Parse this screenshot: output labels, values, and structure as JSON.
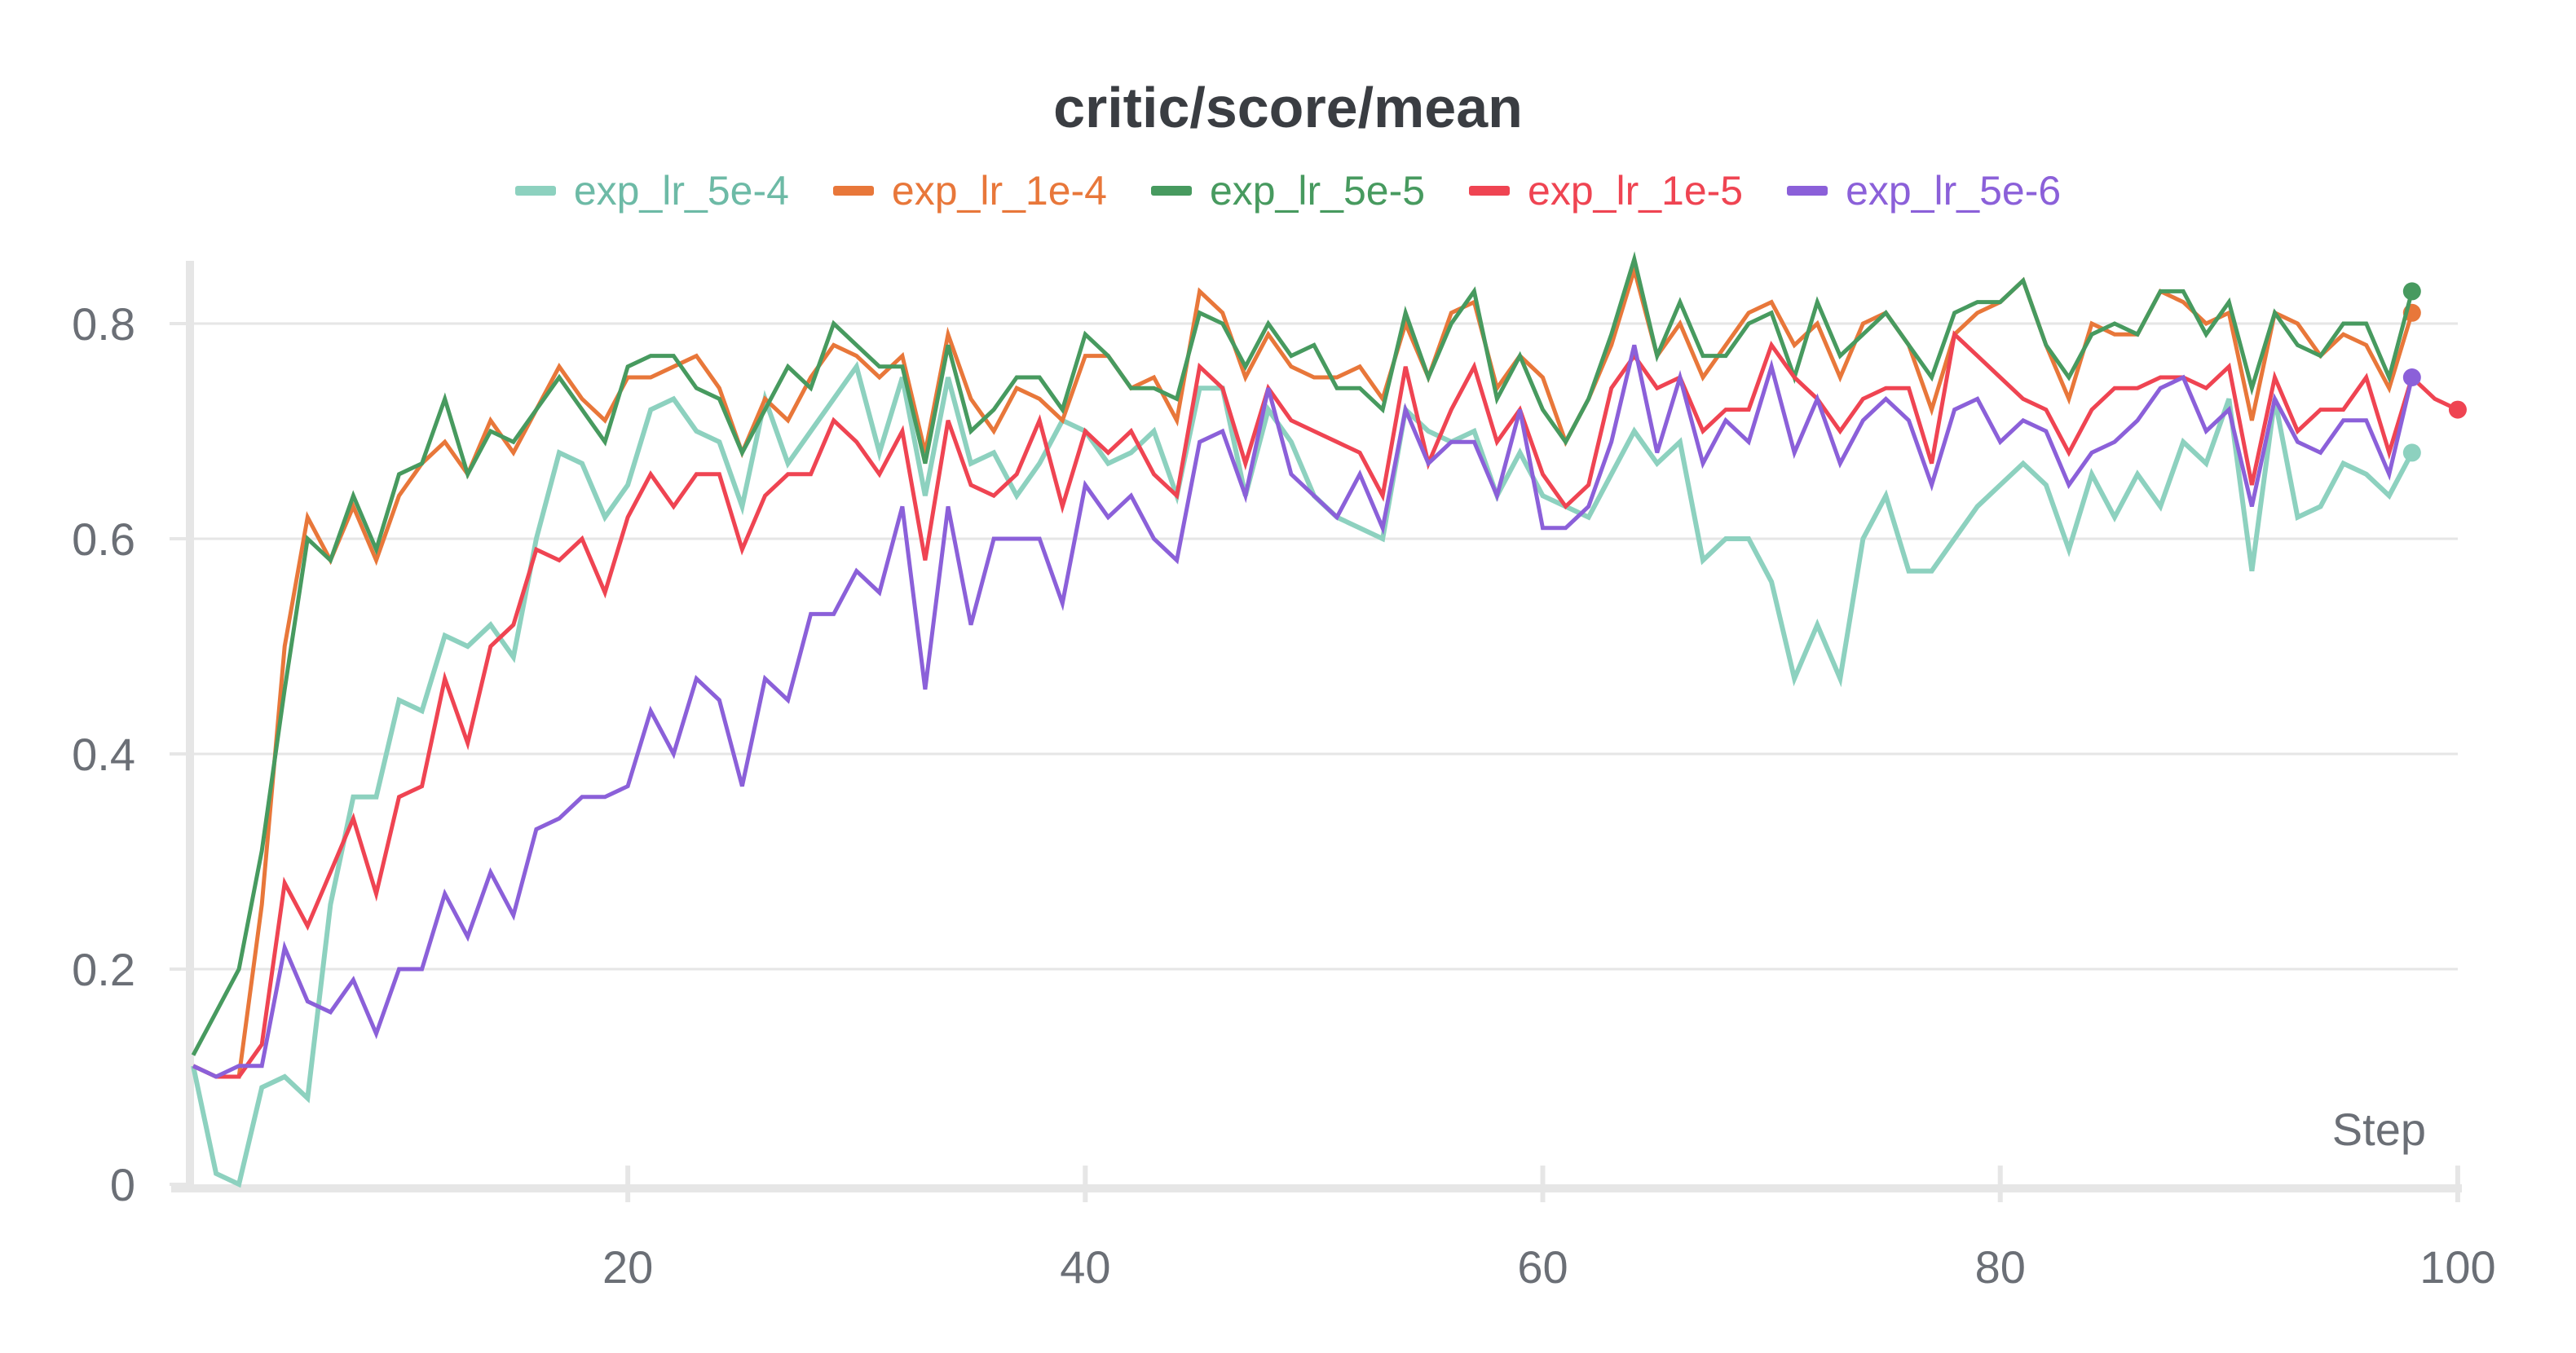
{
  "chart_data": {
    "type": "line",
    "title": "critic/score/mean",
    "xlabel": "Step",
    "ylabel": "",
    "xlim": [
      1,
      100
    ],
    "ylim": [
      0,
      0.86
    ],
    "xticks": [
      20,
      40,
      60,
      80,
      100
    ],
    "yticks": [
      0,
      0.2,
      0.4,
      0.6,
      0.8
    ],
    "ytick_labels": [
      "0",
      "0.2",
      "0.4",
      "0.6",
      "0.8"
    ],
    "xtick_labels": [
      "20",
      "40",
      "60",
      "80",
      "100"
    ],
    "grid": "horizontal",
    "legend_position": "top-center",
    "series": [
      {
        "name": "exp_lr_5e-4",
        "color": "#8dd1bf",
        "text_color": "#6dbaa6",
        "start_step": 1,
        "values": [
          0.11,
          0.01,
          0.0,
          0.09,
          0.1,
          0.08,
          0.26,
          0.36,
          0.36,
          0.45,
          0.44,
          0.51,
          0.5,
          0.52,
          0.49,
          0.6,
          0.68,
          0.67,
          0.62,
          0.65,
          0.72,
          0.73,
          0.7,
          0.69,
          0.63,
          0.73,
          0.67,
          0.7,
          0.73,
          0.76,
          0.68,
          0.75,
          0.64,
          0.75,
          0.67,
          0.68,
          0.64,
          0.67,
          0.71,
          0.7,
          0.67,
          0.68,
          0.7,
          0.64,
          0.74,
          0.74,
          0.64,
          0.72,
          0.69,
          0.64,
          0.62,
          0.61,
          0.6,
          0.72,
          0.7,
          0.69,
          0.7,
          0.64,
          0.68,
          0.64,
          0.63,
          0.62,
          0.66,
          0.7,
          0.67,
          0.69,
          0.58,
          0.6,
          0.6,
          0.56,
          0.47,
          0.52,
          0.47,
          0.6,
          0.64,
          0.57,
          0.57,
          0.6,
          0.63,
          0.65,
          0.67,
          0.65,
          0.59,
          0.66,
          0.62,
          0.66,
          0.63,
          0.69,
          0.67,
          0.73,
          0.57,
          0.73,
          0.62,
          0.63,
          0.67,
          0.66,
          0.64,
          0.68
        ]
      },
      {
        "name": "exp_lr_1e-4",
        "color": "#e8773a",
        "text_color": "#e8773a",
        "start_step": 1,
        "values": [
          0.11,
          0.1,
          0.1,
          0.26,
          0.5,
          0.62,
          0.58,
          0.63,
          0.58,
          0.64,
          0.67,
          0.69,
          0.66,
          0.71,
          0.68,
          0.72,
          0.76,
          0.73,
          0.71,
          0.75,
          0.75,
          0.76,
          0.77,
          0.74,
          0.68,
          0.73,
          0.71,
          0.75,
          0.78,
          0.77,
          0.75,
          0.77,
          0.68,
          0.79,
          0.73,
          0.7,
          0.74,
          0.73,
          0.71,
          0.77,
          0.77,
          0.74,
          0.75,
          0.71,
          0.83,
          0.81,
          0.75,
          0.79,
          0.76,
          0.75,
          0.75,
          0.76,
          0.73,
          0.8,
          0.75,
          0.81,
          0.82,
          0.74,
          0.77,
          0.75,
          0.69,
          0.73,
          0.78,
          0.85,
          0.77,
          0.8,
          0.75,
          0.78,
          0.81,
          0.82,
          0.78,
          0.8,
          0.75,
          0.8,
          0.81,
          0.78,
          0.72,
          0.79,
          0.81,
          0.82,
          0.84,
          0.78,
          0.73,
          0.8,
          0.79,
          0.79,
          0.83,
          0.82,
          0.8,
          0.81,
          0.71,
          0.81,
          0.8,
          0.77,
          0.79,
          0.78,
          0.74,
          0.81
        ]
      },
      {
        "name": "exp_lr_5e-5",
        "color": "#479a5f",
        "text_color": "#479a5f",
        "start_step": 1,
        "values": [
          0.12,
          0.16,
          0.2,
          0.31,
          0.46,
          0.6,
          0.58,
          0.64,
          0.59,
          0.66,
          0.67,
          0.73,
          0.66,
          0.7,
          0.69,
          0.72,
          0.75,
          0.72,
          0.69,
          0.76,
          0.77,
          0.77,
          0.74,
          0.73,
          0.68,
          0.72,
          0.76,
          0.74,
          0.8,
          0.78,
          0.76,
          0.76,
          0.67,
          0.78,
          0.7,
          0.72,
          0.75,
          0.75,
          0.72,
          0.79,
          0.77,
          0.74,
          0.74,
          0.73,
          0.81,
          0.8,
          0.76,
          0.8,
          0.77,
          0.78,
          0.74,
          0.74,
          0.72,
          0.81,
          0.75,
          0.8,
          0.83,
          0.73,
          0.77,
          0.72,
          0.69,
          0.73,
          0.79,
          0.86,
          0.77,
          0.82,
          0.77,
          0.77,
          0.8,
          0.81,
          0.75,
          0.82,
          0.77,
          0.79,
          0.81,
          0.78,
          0.75,
          0.81,
          0.82,
          0.82,
          0.84,
          0.78,
          0.75,
          0.79,
          0.8,
          0.79,
          0.83,
          0.83,
          0.79,
          0.82,
          0.74,
          0.81,
          0.78,
          0.77,
          0.8,
          0.8,
          0.75,
          0.83
        ]
      },
      {
        "name": "exp_lr_1e-5",
        "color": "#ef4452",
        "text_color": "#ef4452",
        "start_step": 1,
        "values": [
          0.11,
          0.1,
          0.1,
          0.13,
          0.28,
          0.24,
          0.29,
          0.34,
          0.27,
          0.36,
          0.37,
          0.47,
          0.41,
          0.5,
          0.52,
          0.59,
          0.58,
          0.6,
          0.55,
          0.62,
          0.66,
          0.63,
          0.66,
          0.66,
          0.59,
          0.64,
          0.66,
          0.66,
          0.71,
          0.69,
          0.66,
          0.7,
          0.58,
          0.71,
          0.65,
          0.64,
          0.66,
          0.71,
          0.63,
          0.7,
          0.68,
          0.7,
          0.66,
          0.64,
          0.76,
          0.74,
          0.67,
          0.74,
          0.71,
          0.7,
          0.69,
          0.68,
          0.64,
          0.76,
          0.67,
          0.72,
          0.76,
          0.69,
          0.72,
          0.66,
          0.63,
          0.65,
          0.74,
          0.77,
          0.74,
          0.75,
          0.7,
          0.72,
          0.72,
          0.78,
          0.75,
          0.73,
          0.7,
          0.73,
          0.74,
          0.74,
          0.67,
          0.79,
          0.77,
          0.75,
          0.73,
          0.72,
          0.68,
          0.72,
          0.74,
          0.74,
          0.75,
          0.75,
          0.74,
          0.76,
          0.65,
          0.75,
          0.7,
          0.72,
          0.72,
          0.75,
          0.68,
          0.75,
          0.73,
          0.72
        ]
      },
      {
        "name": "exp_lr_5e-6",
        "color": "#8b60d9",
        "text_color": "#8b60d9",
        "start_step": 1,
        "values": [
          0.11,
          0.1,
          0.11,
          0.11,
          0.22,
          0.17,
          0.16,
          0.19,
          0.14,
          0.2,
          0.2,
          0.27,
          0.23,
          0.29,
          0.25,
          0.33,
          0.34,
          0.36,
          0.36,
          0.37,
          0.44,
          0.4,
          0.47,
          0.45,
          0.37,
          0.47,
          0.45,
          0.53,
          0.53,
          0.57,
          0.55,
          0.63,
          0.46,
          0.63,
          0.52,
          0.6,
          0.6,
          0.6,
          0.54,
          0.65,
          0.62,
          0.64,
          0.6,
          0.58,
          0.69,
          0.7,
          0.64,
          0.74,
          0.66,
          0.64,
          0.62,
          0.66,
          0.61,
          0.72,
          0.67,
          0.69,
          0.69,
          0.64,
          0.72,
          0.61,
          0.61,
          0.63,
          0.69,
          0.78,
          0.68,
          0.75,
          0.67,
          0.71,
          0.69,
          0.76,
          0.68,
          0.73,
          0.67,
          0.71,
          0.73,
          0.71,
          0.65,
          0.72,
          0.73,
          0.69,
          0.71,
          0.7,
          0.65,
          0.68,
          0.69,
          0.71,
          0.74,
          0.75,
          0.7,
          0.72,
          0.63,
          0.73,
          0.69,
          0.68,
          0.71,
          0.71,
          0.66,
          0.75
        ]
      }
    ]
  }
}
